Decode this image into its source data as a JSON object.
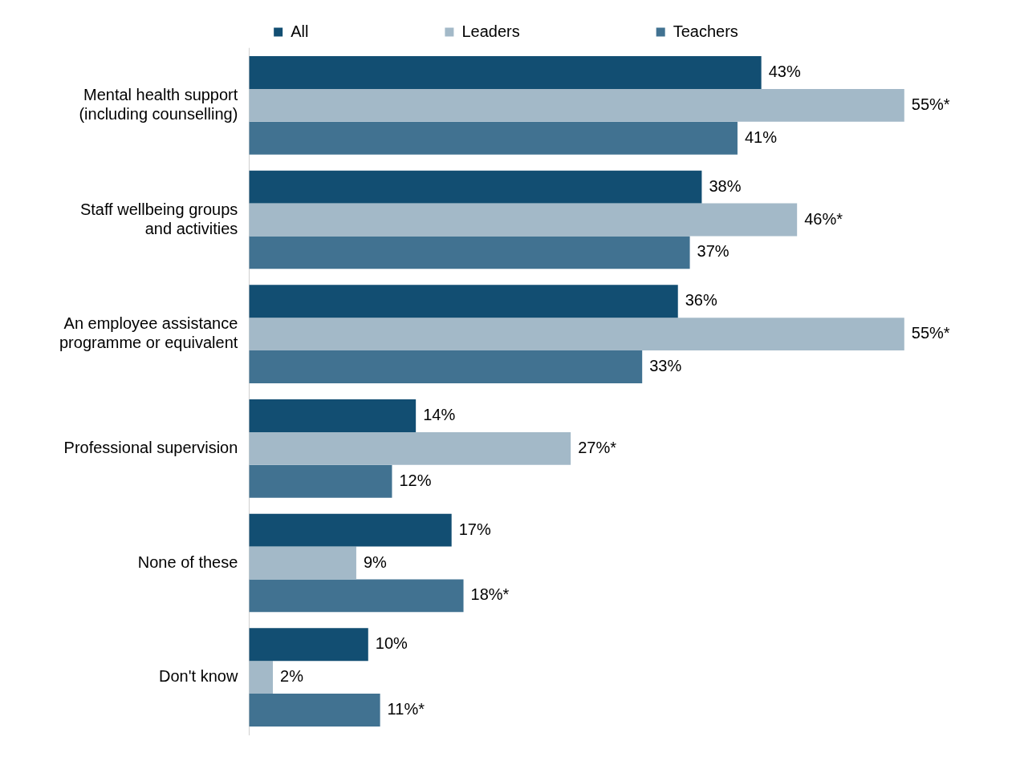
{
  "chart_data": {
    "type": "bar",
    "orientation": "horizontal",
    "legend": "top",
    "categories": [
      "Mental health support (including counselling)",
      "Staff wellbeing groups and activities",
      "An employee assistance programme or equivalent",
      "Professional supervision",
      "None of these",
      "Don't know"
    ],
    "series": [
      {
        "name": "All",
        "color": "#124e72",
        "values": [
          43,
          38,
          36,
          14,
          17,
          10
        ],
        "value_labels": [
          "43%",
          "38%",
          "36%",
          "14%",
          "17%",
          "10%"
        ]
      },
      {
        "name": "Leaders",
        "color": "#a3b9c8",
        "values": [
          55,
          46,
          55,
          27,
          9,
          2
        ],
        "value_labels": [
          "55%*",
          "46%*",
          "55%*",
          "27%*",
          "9%",
          "2%"
        ]
      },
      {
        "name": "Teachers",
        "color": "#417291",
        "values": [
          41,
          37,
          33,
          12,
          18,
          11
        ],
        "value_labels": [
          "41%",
          "37%",
          "33%",
          "12%",
          "18%*",
          "11%*"
        ]
      }
    ]
  }
}
